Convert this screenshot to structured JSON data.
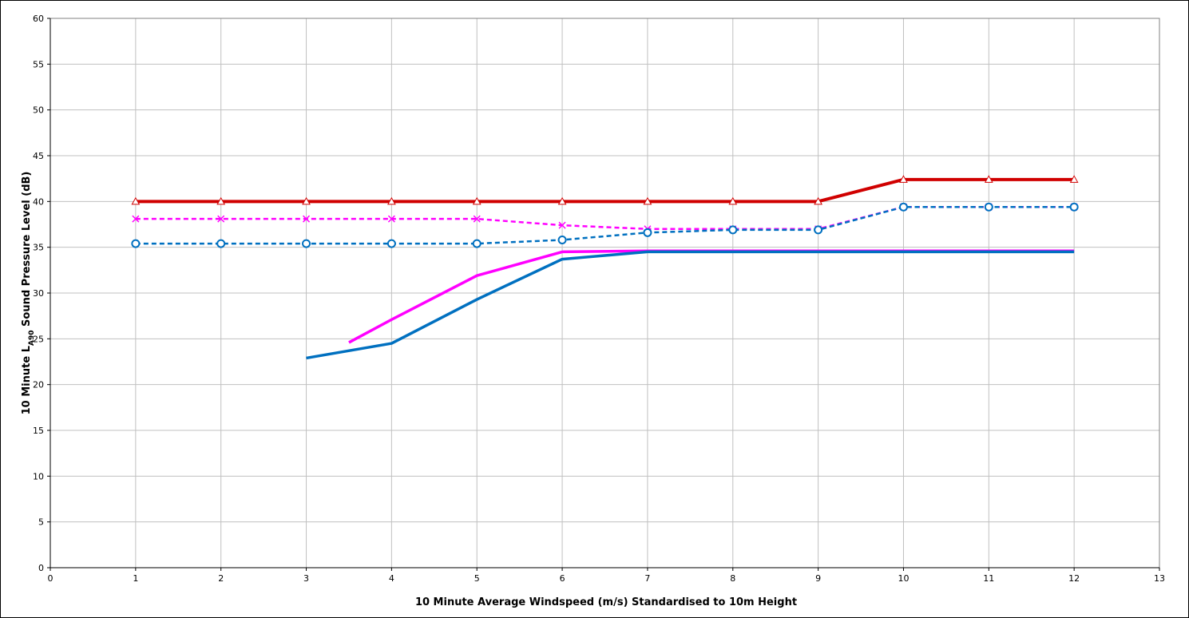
{
  "chart_data": {
    "type": "line",
    "title": "",
    "xlabel": "10 Minute Average Windspeed (m/s) Standardised to 10m Height",
    "ylabel": {
      "prefix": "10 Minute L",
      "subscript": "A90",
      "suffix": " Sound Pressure Level (dB)"
    },
    "xlim": [
      0,
      13
    ],
    "ylim": [
      0,
      60
    ],
    "x_ticks": [
      0,
      1,
      2,
      3,
      4,
      5,
      6,
      7,
      8,
      9,
      10,
      11,
      12,
      13
    ],
    "y_ticks": [
      0,
      5,
      10,
      15,
      20,
      25,
      30,
      35,
      40,
      45,
      50,
      55,
      60
    ],
    "grid": true,
    "legend": "none",
    "series": [
      {
        "color": "#d00000",
        "style": "solid-thick",
        "marker": "triangle",
        "x": [
          1,
          2,
          3,
          4,
          5,
          6,
          7,
          8,
          9,
          10,
          11,
          12
        ],
        "y": [
          40,
          40,
          40,
          40,
          40,
          40,
          40,
          40,
          40,
          42.4,
          42.4,
          42.4
        ]
      },
      {
        "color": "#ff00ff",
        "style": "dashed",
        "marker": "x",
        "x": [
          1,
          2,
          3,
          4,
          5,
          6,
          7,
          8,
          9,
          10,
          11,
          12
        ],
        "y": [
          38.1,
          38.1,
          38.1,
          38.1,
          38.1,
          37.4,
          37.0,
          37.0,
          37.0,
          39.4,
          39.4,
          39.4
        ]
      },
      {
        "color": "#0070c0",
        "style": "dashed",
        "marker": "circle",
        "x": [
          1,
          2,
          3,
          4,
          5,
          6,
          7,
          8,
          9,
          10,
          11,
          12
        ],
        "y": [
          35.4,
          35.4,
          35.4,
          35.4,
          35.4,
          35.8,
          36.6,
          36.9,
          36.9,
          39.4,
          39.4,
          39.4
        ]
      },
      {
        "color": "#ff00ff",
        "style": "solid",
        "marker": "none",
        "x": [
          3.5,
          4,
          5,
          6,
          7,
          8,
          9,
          10,
          11,
          12
        ],
        "y": [
          24.6,
          27.1,
          31.9,
          34.5,
          34.6,
          34.6,
          34.6,
          34.6,
          34.6,
          34.6
        ]
      },
      {
        "color": "#0070c0",
        "style": "solid",
        "marker": "none",
        "x": [
          3,
          4,
          5,
          6,
          7,
          8,
          9,
          10,
          11,
          12
        ],
        "y": [
          22.9,
          24.5,
          29.3,
          33.7,
          34.5,
          34.5,
          34.5,
          34.5,
          34.5,
          34.5
        ]
      }
    ]
  }
}
